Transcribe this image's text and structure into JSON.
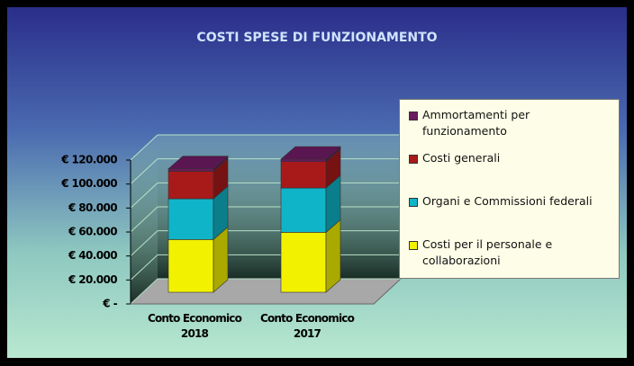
{
  "chart_data": {
    "type": "bar3d_stacked",
    "title": "COSTI SPESE DI FUNZIONAMENTO",
    "categories": [
      "Conto Economico 2018",
      "Conto Economico 2017"
    ],
    "series": [
      {
        "name": "Costi per il personale e collaborazioni",
        "color": "#f2f200",
        "values": [
          44000,
          50000
        ]
      },
      {
        "name": "Organi e Commissioni federali",
        "color": "#10b4c8",
        "values": [
          34000,
          37000
        ]
      },
      {
        "name": "Costi generali",
        "color": "#a81a1a",
        "values": [
          23000,
          22000
        ]
      },
      {
        "name": "Ammortamenti per funzionamento",
        "color": "#6a1a5e",
        "values": [
          2000,
          2000
        ]
      }
    ],
    "ylim": [
      0,
      120000
    ],
    "yticks": [
      {
        "value": 0,
        "label": "€ -"
      },
      {
        "value": 20000,
        "label": "€ 20.000"
      },
      {
        "value": 40000,
        "label": "€ 40.000"
      },
      {
        "value": 60000,
        "label": "€ 60.000"
      },
      {
        "value": 80000,
        "label": "€ 80.000"
      },
      {
        "value": 100000,
        "label": "€ 100.000"
      },
      {
        "value": 120000,
        "label": "€ 120.000"
      }
    ],
    "grid": true
  }
}
